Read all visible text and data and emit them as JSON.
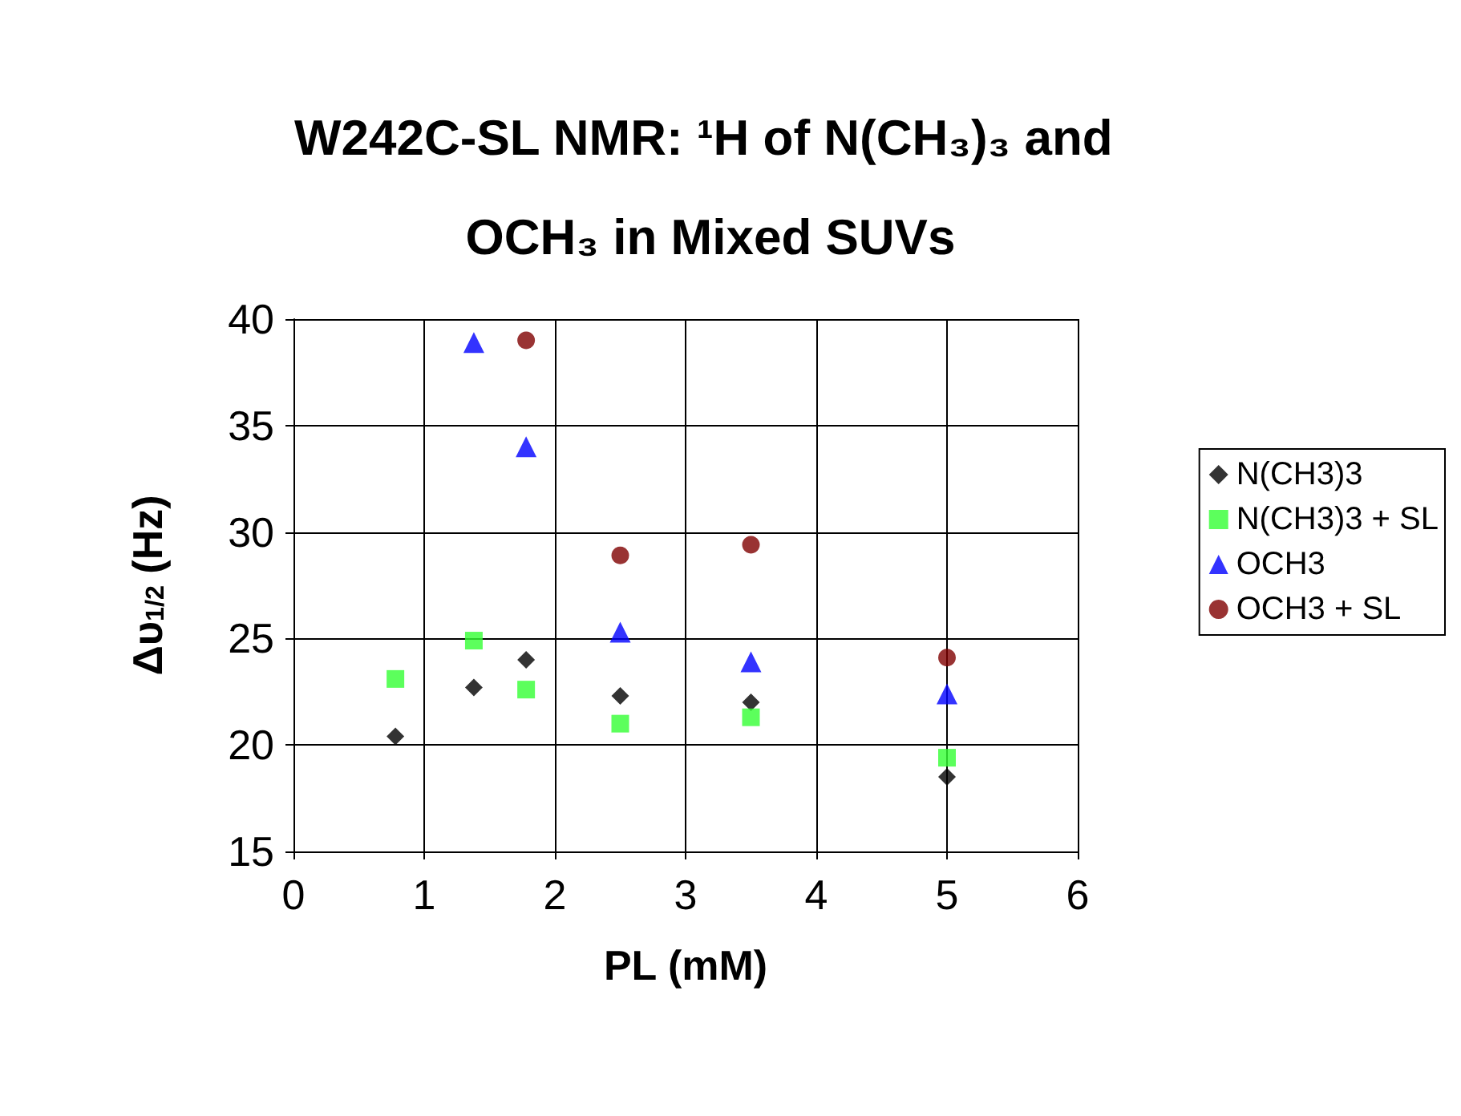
{
  "chart_data": {
    "type": "scatter",
    "title": "W242C-SL NMR: ¹H of N(CH₃)₃ and OCH₃ in Mixed SUVs",
    "xlabel": "PL (mM)",
    "ylabel": "Δυ$_{1/2}$ (Hz)",
    "xlim": [
      0,
      6
    ],
    "xticks": [
      0,
      1,
      2,
      3,
      4,
      5,
      6
    ],
    "ylim": [
      15,
      40
    ],
    "yticks": [
      15,
      20,
      25,
      30,
      35,
      40
    ],
    "grid": true,
    "legend": "right",
    "series": [
      {
        "name": "N(CH3)3",
        "color": "#000000",
        "marker": "diamond",
        "x": [
          0.78,
          1.38,
          1.78,
          2.5,
          3.5,
          5
        ],
        "values": [
          20.4,
          22.7,
          24.0,
          22.3,
          22.0,
          18.5
        ]
      },
      {
        "name": "N(CH3)3 + SL",
        "color": "#33ff33",
        "marker": "square",
        "x": [
          0.78,
          1.38,
          1.78,
          2.5,
          3.5,
          5
        ],
        "values": [
          23.1,
          24.9,
          22.6,
          21.0,
          21.3,
          19.4
        ]
      },
      {
        "name": "OCH3",
        "color": "#0000ff",
        "marker": "triangle",
        "x": [
          1.38,
          1.78,
          2.5,
          3.5,
          5
        ],
        "values": [
          38.9,
          34.0,
          25.3,
          23.9,
          22.4
        ]
      },
      {
        "name": "OCH3 + SL",
        "color": "#800000",
        "marker": "circle",
        "x": [
          1.78,
          2.5,
          3.5,
          5
        ],
        "values": [
          39.0,
          28.9,
          29.4,
          24.1
        ]
      }
    ]
  }
}
